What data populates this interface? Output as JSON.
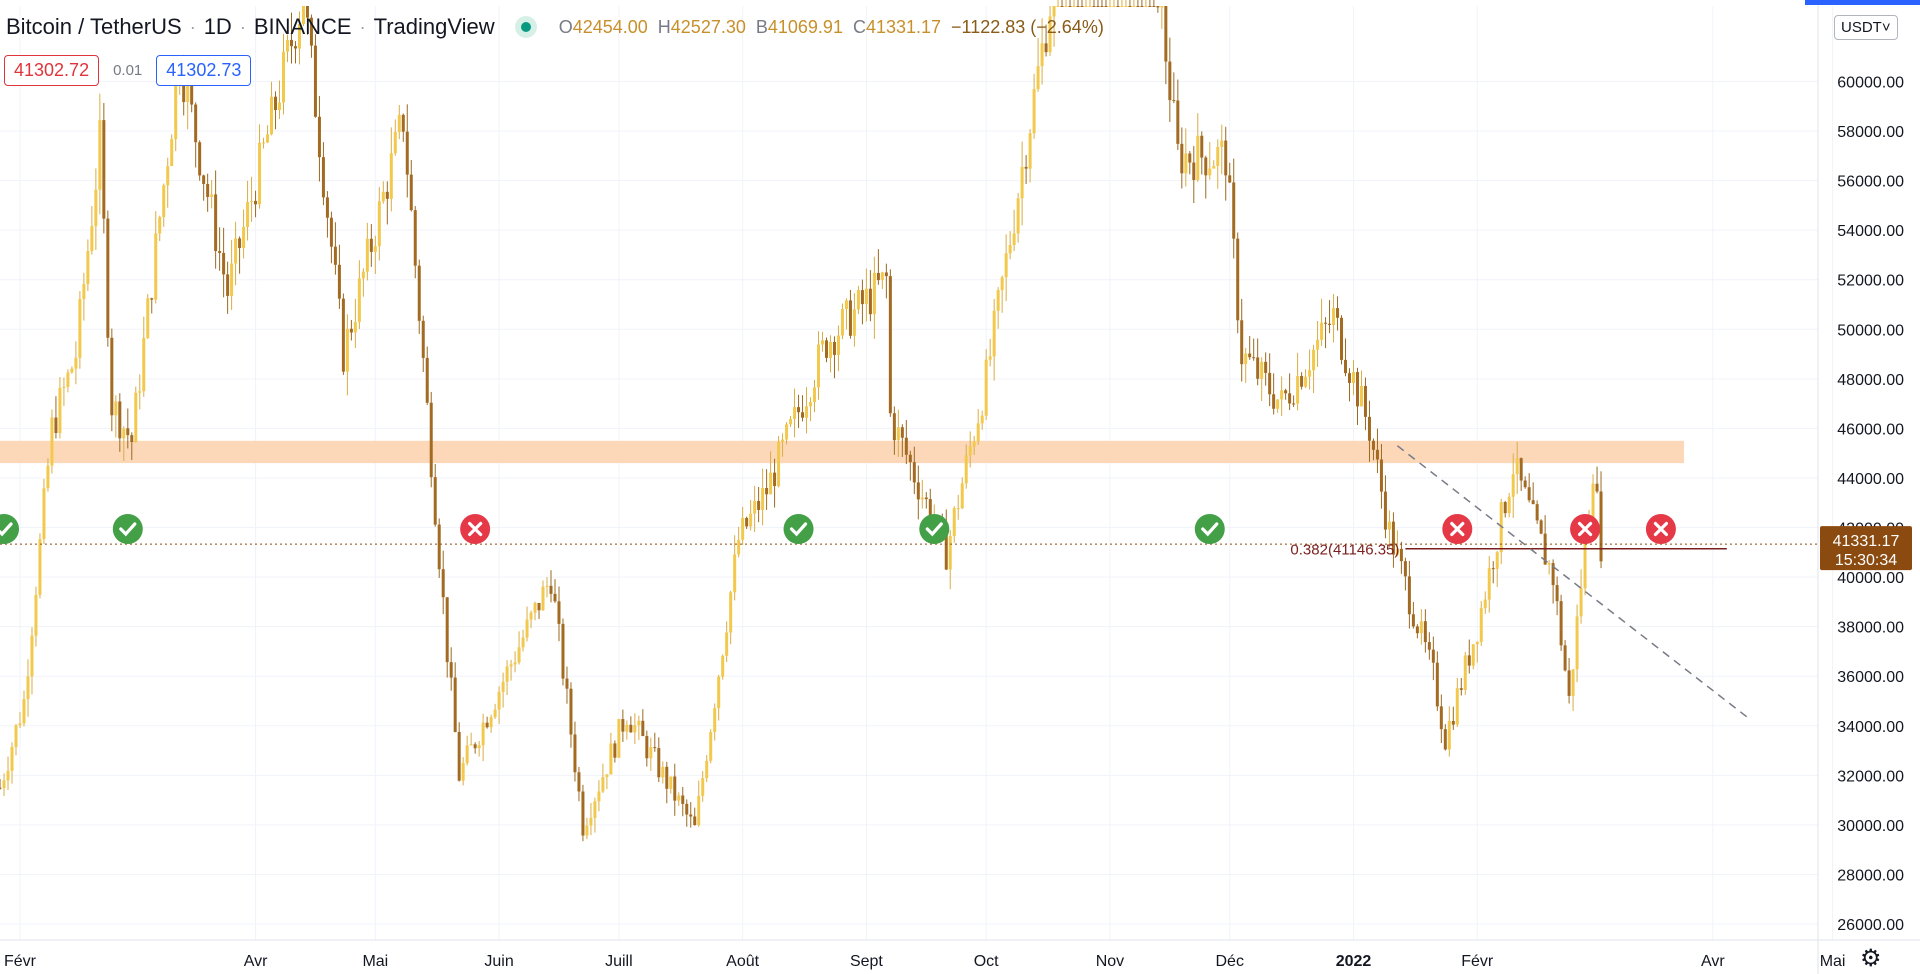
{
  "header": {
    "symbol": "Bitcoin / TetherUS",
    "interval": "1D",
    "exchange": "BINANCE",
    "source": "TradingView",
    "ohlc": {
      "o_label": "O",
      "o": "42454.00",
      "h_label": "H",
      "h": "42527.30",
      "l_label": "B",
      "l": "41069.91",
      "c_label": "C",
      "c": "41331.17",
      "change": "−1122.83 (−2.64%)"
    }
  },
  "bid_ask": {
    "sell": "41302.72",
    "spread": "0.01",
    "buy": "41302.73"
  },
  "currency_button": "USDT˅",
  "last_price": {
    "value": "41331.17",
    "countdown": "15:30:34"
  },
  "colors": {
    "up_candle": "#f2c94c",
    "down_candle": "#a36a22",
    "wick": "#9a6a22",
    "zone": "#fdd4b0",
    "fib_line": "#7a1e1e",
    "check": "#43a047",
    "cross": "#e53947",
    "grid": "#f0f3fa",
    "price_label_bg": "#8b4a0f"
  },
  "icons": {
    "settings": "gear-icon",
    "check": "check-circle-icon",
    "cross": "x-circle-icon"
  },
  "chart_data": {
    "type": "candlestick",
    "title": "Bitcoin / TetherUS · 1D · BINANCE",
    "y_axis": {
      "scale": "linear",
      "range": [
        25400,
        62800
      ],
      "tick_labels": [
        "60000.00",
        "58000.00",
        "56000.00",
        "54000.00",
        "52000.00",
        "50000.00",
        "48000.00",
        "46000.00",
        "44000.00",
        "42000.00",
        "40000.00",
        "38000.00",
        "36000.00",
        "34000.00",
        "32000.00",
        "30000.00",
        "28000.00",
        "26000.00"
      ],
      "tick_values": [
        60000,
        58000,
        56000,
        54000,
        52000,
        50000,
        48000,
        46000,
        44000,
        42000,
        40000,
        38000,
        36000,
        34000,
        32000,
        30000,
        28000,
        26000
      ]
    },
    "x_axis": {
      "tick_labels": [
        "Févr",
        "Avr",
        "Mai",
        "Juin",
        "Juill",
        "Août",
        "Sept",
        "Oct",
        "Nov",
        "Déc",
        "2022",
        "Févr",
        "Avr",
        "Mai"
      ],
      "tick_dates": [
        "2021-02-01",
        "2021-04-01",
        "2021-05-01",
        "2021-06-01",
        "2021-07-01",
        "2021-08-01",
        "2021-09-01",
        "2021-10-01",
        "2021-11-01",
        "2021-12-01",
        "2022-01-01",
        "2022-02-01",
        "2022-04-01",
        "2022-05-01"
      ],
      "range": [
        "2021-01-27",
        "2022-05-07"
      ]
    },
    "grid": true,
    "price_path": [
      [
        "2021-01-27",
        31500
      ],
      [
        "2021-02-02",
        35000
      ],
      [
        "2021-02-09",
        46000
      ],
      [
        "2021-02-15",
        49000
      ],
      [
        "2021-02-21",
        57500
      ],
      [
        "2021-02-24",
        47000
      ],
      [
        "2021-03-01",
        45500
      ],
      [
        "2021-03-13",
        61000
      ],
      [
        "2021-03-25",
        51500
      ],
      [
        "2021-04-13",
        63500
      ],
      [
        "2021-04-23",
        49000
      ],
      [
        "2021-05-08",
        58500
      ],
      [
        "2021-05-19",
        37000
      ],
      [
        "2021-05-22",
        32000
      ],
      [
        "2021-06-14",
        40000
      ],
      [
        "2021-06-22",
        30000
      ],
      [
        "2021-07-03",
        34500
      ],
      [
        "2021-07-20",
        29800
      ],
      [
        "2021-07-31",
        41500
      ],
      [
        "2021-08-07",
        43500
      ],
      [
        "2021-08-22",
        49500
      ],
      [
        "2021-09-06",
        52000
      ],
      [
        "2021-09-07",
        46500
      ],
      [
        "2021-09-21",
        41000
      ],
      [
        "2021-10-01",
        48000
      ],
      [
        "2021-10-20",
        66000
      ],
      [
        "2021-11-10",
        68000
      ],
      [
        "2021-11-18",
        57000
      ],
      [
        "2021-11-30",
        57000
      ],
      [
        "2021-12-04",
        49000
      ],
      [
        "2021-12-14",
        47000
      ],
      [
        "2021-12-27",
        50500
      ],
      [
        "2022-01-05",
        46000
      ],
      [
        "2022-01-10",
        41800
      ],
      [
        "2022-01-21",
        36000
      ],
      [
        "2022-01-24",
        33500
      ],
      [
        "2022-02-01",
        38000
      ],
      [
        "2022-02-10",
        44500
      ],
      [
        "2022-02-20",
        40000
      ],
      [
        "2022-02-24",
        35000
      ],
      [
        "2022-03-02",
        44500
      ],
      [
        "2022-03-04",
        41331.17
      ]
    ],
    "last_price": 41331.17,
    "resistance_zone": [
      44600,
      45500
    ],
    "fib_level": {
      "label": "0.382(41146.35)",
      "value": 41146.35,
      "from": "2022-01-14",
      "to": "2022-04-01"
    },
    "trendline": {
      "start": [
        "2022-01-12",
        45300
      ],
      "end": [
        "2022-04-10",
        34300
      ],
      "style": "dashed"
    },
    "markers": [
      {
        "date": "2021-01-28",
        "type": "check"
      },
      {
        "date": "2021-02-28",
        "type": "check"
      },
      {
        "date": "2021-05-26",
        "type": "cross"
      },
      {
        "date": "2021-08-15",
        "type": "check"
      },
      {
        "date": "2021-09-18",
        "type": "check"
      },
      {
        "date": "2021-11-26",
        "type": "check"
      },
      {
        "date": "2022-01-27",
        "type": "cross"
      },
      {
        "date": "2022-02-28",
        "type": "cross"
      },
      {
        "date": "2022-03-19",
        "type": "cross"
      }
    ]
  }
}
